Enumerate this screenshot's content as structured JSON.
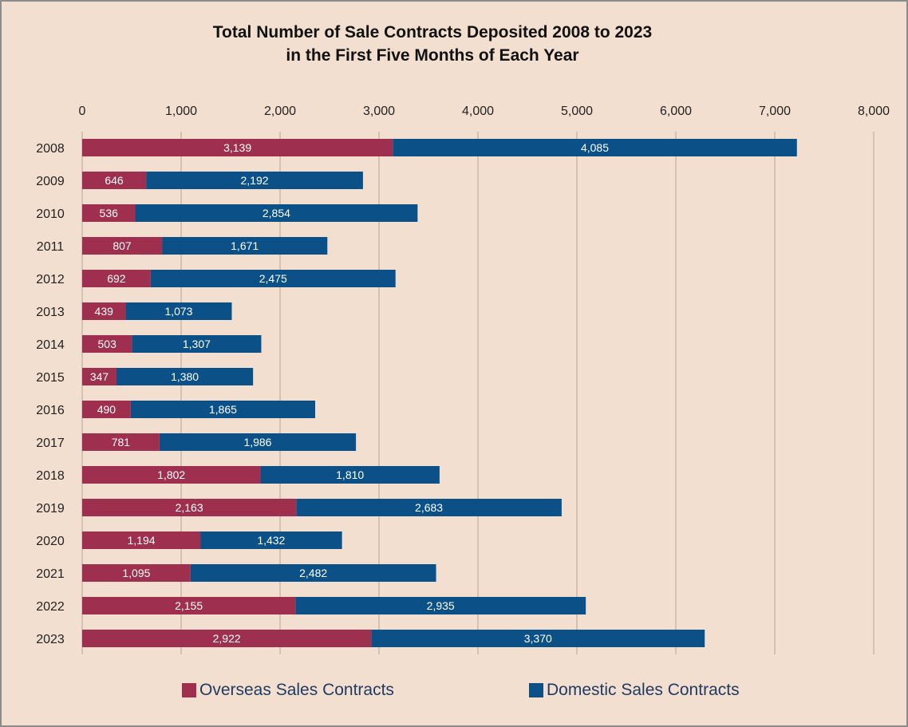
{
  "chart_data": {
    "type": "bar",
    "orientation": "horizontal",
    "stacked": true,
    "title_line1": "Total Number of Sale Contracts Deposited 2008 to 2023",
    "title_line2": "in the First Five Months of Each Year",
    "categories": [
      "2008",
      "2009",
      "2010",
      "2011",
      "2012",
      "2013",
      "2014",
      "2015",
      "2016",
      "2017",
      "2018",
      "2019",
      "2020",
      "2021",
      "2022",
      "2023"
    ],
    "series": [
      {
        "name": "Overseas Sales Contracts",
        "color": "#9e2f4f",
        "values": [
          3139,
          646,
          536,
          807,
          692,
          439,
          503,
          347,
          490,
          781,
          1802,
          2163,
          1194,
          1095,
          2155,
          2922
        ]
      },
      {
        "name": "Domestic Sales Contracts",
        "color": "#0b5188",
        "values": [
          4085,
          2192,
          2854,
          1671,
          2475,
          1073,
          1307,
          1380,
          1865,
          1986,
          1810,
          2683,
          1432,
          2482,
          2935,
          3370
        ]
      }
    ],
    "xlim": [
      0,
      8000
    ],
    "xticks": [
      0,
      1000,
      2000,
      3000,
      4000,
      5000,
      6000,
      7000,
      8000
    ],
    "xtick_labels": [
      "0",
      "1,000",
      "2,000",
      "3,000",
      "4,000",
      "5,000",
      "6,000",
      "7,000",
      "8,000"
    ],
    "grid": true,
    "axis_position": "top",
    "legend_position": "bottom"
  }
}
